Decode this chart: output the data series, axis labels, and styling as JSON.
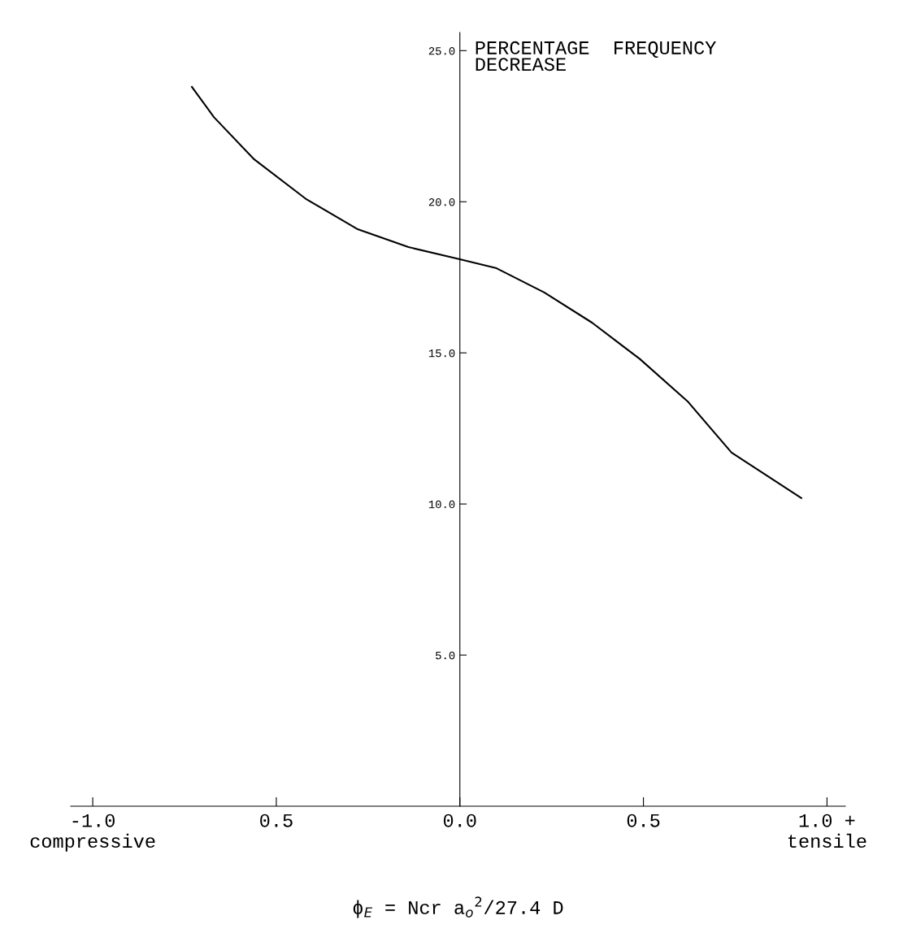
{
  "chart_data": {
    "type": "line",
    "ylabel": "PERCENTAGE  FREQUENCY\nDECREASE",
    "xlabel": "ϕ$_{E}$ = Ncr a$_{o}$$^{2}$/27.4 D",
    "x": [
      -0.73,
      -0.67,
      -0.56,
      -0.42,
      -0.28,
      -0.14,
      0.0,
      0.1,
      0.23,
      0.36,
      0.49,
      0.62,
      0.74,
      0.93
    ],
    "series": [
      {
        "color": "#000000",
        "values": [
          23.8,
          22.8,
          21.4,
          20.1,
          19.1,
          18.5,
          18.1,
          17.8,
          17.0,
          16.0,
          14.8,
          13.4,
          11.7,
          10.2
        ]
      }
    ],
    "xlim": [
      -1.06,
      1.05
    ],
    "ylim": [
      0,
      25.6
    ],
    "xticks": [
      {
        "value": -1.0,
        "label": "-1.0\ncompressive"
      },
      {
        "value": -0.5,
        "label": "0.5"
      },
      {
        "value": 0.0,
        "label": "0.0"
      },
      {
        "value": 0.5,
        "label": "0.5"
      },
      {
        "value": 1.0,
        "label": "1.0 +\ntensile"
      }
    ],
    "yticks": [
      {
        "value": 5.0,
        "label": "5.0"
      },
      {
        "value": 10.0,
        "label": "10.0"
      },
      {
        "value": 15.0,
        "label": "15.0"
      },
      {
        "value": 20.0,
        "label": "20.0"
      },
      {
        "value": 25.0,
        "label": "25.0"
      }
    ],
    "grid": false,
    "legend": false,
    "marker": "none",
    "line_style": "solid"
  }
}
